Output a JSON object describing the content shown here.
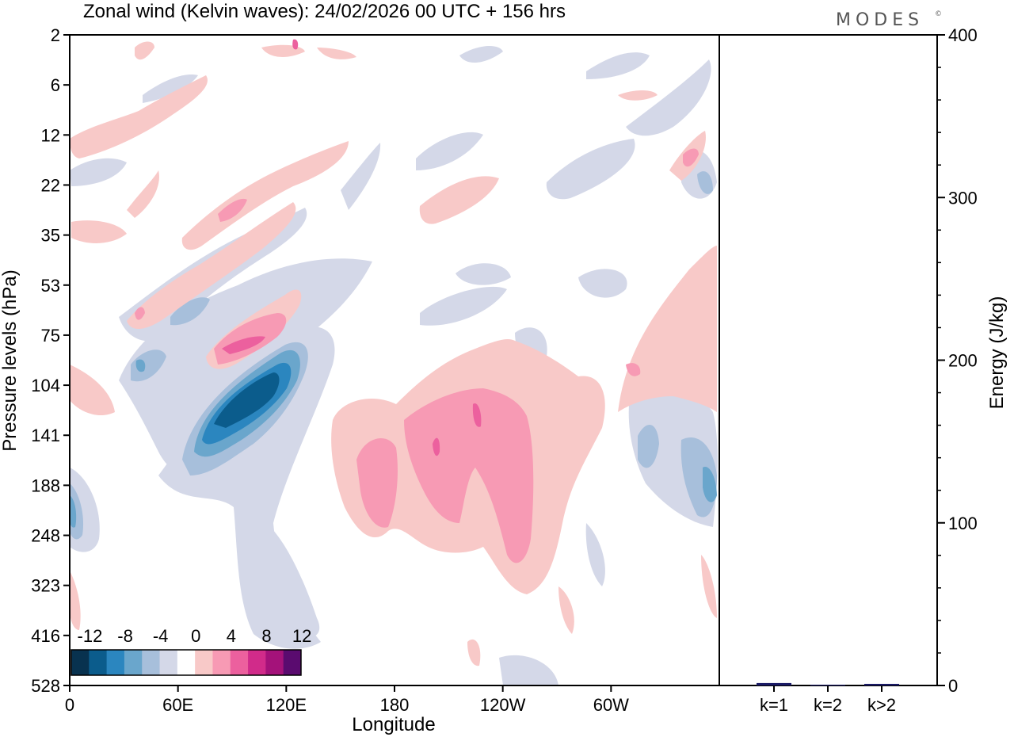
{
  "chart_data": [
    {
      "type": "heatmap",
      "title": "Zonal wind (Kelvin waves):  24/02/2026  00 UTC  + 156 hrs",
      "brand": "MODES",
      "brand_mark": "©",
      "xlabel": "Longitude",
      "ylabel": "Pressure levels (hPa)",
      "x_ticks": [
        "0",
        "60E",
        "120E",
        "180",
        "120W",
        "60W"
      ],
      "y_ticks": [
        "2",
        "6",
        "12",
        "22",
        "35",
        "53",
        "75",
        "104",
        "141",
        "188",
        "248",
        "323",
        "416",
        "528"
      ],
      "colorbar": {
        "labels": [
          "-12",
          "-8",
          "-4",
          "0",
          "4",
          "8",
          "12"
        ],
        "levels": [
          -16,
          -14,
          -12,
          -10,
          -8,
          -6,
          -4,
          -2,
          2,
          4,
          6,
          8,
          10,
          12,
          14,
          16
        ],
        "colors": [
          "#08324f",
          "#0b5c8c",
          "#2b86bf",
          "#6aa6cc",
          "#a7bfdb",
          "#d4d8e8",
          "#ffffff",
          "#f8c9c8",
          "#f79ab4",
          "#ec609e",
          "#d12b8a",
          "#a4127a",
          "#5a0b6f"
        ]
      },
      "features": [
        {
          "lon": 100,
          "lev": 115,
          "value": -14
        },
        {
          "lon": 95,
          "lev": 80,
          "value": 9
        },
        {
          "lon": 205,
          "lev": 135,
          "value": 8
        },
        {
          "lon": 240,
          "lev": 140,
          "value": 6
        },
        {
          "lon": 345,
          "lev": 200,
          "value": -7
        },
        {
          "lon": 80,
          "lev": 24,
          "value": 4
        },
        {
          "lon": 5,
          "lev": 210,
          "value": -5
        },
        {
          "lon": 345,
          "lev": 17,
          "value": 5
        }
      ]
    },
    {
      "type": "bar",
      "ylabel": "Energy (J/kg)",
      "categories": [
        "k=1",
        "k=2",
        "k>2"
      ],
      "values": [
        1.5,
        0.5,
        1.0
      ],
      "ylim": [
        0,
        400
      ],
      "y_ticks": [
        "0",
        "100",
        "200",
        "300",
        "400"
      ],
      "bar_color": "#1a1a66"
    }
  ]
}
